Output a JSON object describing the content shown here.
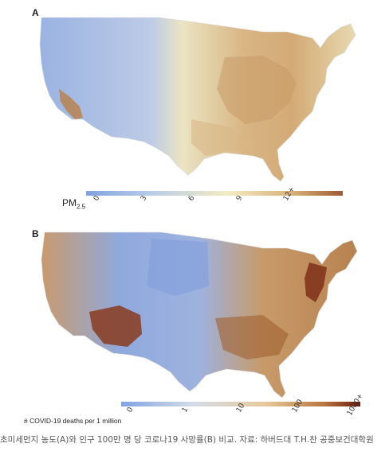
{
  "panels": [
    {
      "label": "A",
      "legend_title_main": "PM",
      "legend_title_sub": "2.5",
      "legend_ticks": [
        "0",
        "3",
        "6",
        "9",
        "12+"
      ],
      "scale_colors": [
        "#7fa3e0",
        "#c8d7ee",
        "#f3ecc4",
        "#d9b27a",
        "#9e5a33"
      ]
    },
    {
      "label": "B",
      "legend_title": "# COVID-19 deaths per 1 million",
      "legend_ticks": [
        "0",
        "1",
        "10",
        "100",
        "1000+"
      ],
      "scale_colors": [
        "#7fa3e0",
        "#d4dbe8",
        "#e7c99b",
        "#b8753f",
        "#6e1a10"
      ]
    }
  ],
  "caption": "초미세먼지 농도(A)와 인구 100만 명 당 코로나19 사망률(B) 비교. 자료: 하버드대 T.H.찬 공중보건대학원"
}
